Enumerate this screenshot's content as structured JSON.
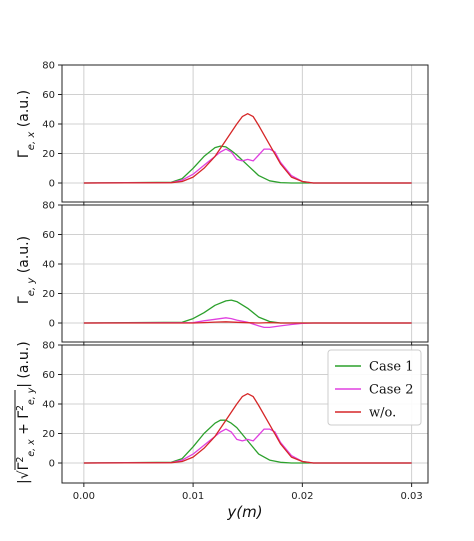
{
  "chart_data": [
    {
      "type": "line",
      "ylabel": "Γe, x (a.u.)",
      "ylim": [
        0,
        80
      ],
      "yticks": [
        0,
        20,
        40,
        60,
        80
      ],
      "xlim": [
        -0.002,
        0.0315
      ],
      "xticks": [
        0.0,
        0.01,
        0.02,
        0.03
      ],
      "grid": true,
      "series": [
        {
          "name": "Case 1",
          "color": "#2ca02c",
          "x": [
            0,
            0.008,
            0.009,
            0.01,
            0.011,
            0.012,
            0.0125,
            0.013,
            0.0135,
            0.014,
            0.015,
            0.016,
            0.017,
            0.018,
            0.019,
            0.02,
            0.021,
            0.03
          ],
          "y": [
            0,
            0.5,
            3,
            10,
            18,
            24,
            25,
            24.5,
            22,
            19,
            12,
            5,
            1.5,
            0.3,
            0,
            0,
            0,
            0
          ]
        },
        {
          "name": "Case 2",
          "color": "#e040e0",
          "x": [
            0,
            0.008,
            0.009,
            0.01,
            0.011,
            0.012,
            0.0125,
            0.013,
            0.0135,
            0.014,
            0.0145,
            0.015,
            0.0155,
            0.016,
            0.0165,
            0.017,
            0.0175,
            0.018,
            0.019,
            0.02,
            0.021,
            0.03
          ],
          "y": [
            0,
            0.3,
            2,
            6,
            12,
            18,
            21,
            23,
            21,
            16,
            15,
            16,
            15,
            19,
            23,
            23,
            21,
            14,
            5,
            1,
            0,
            0
          ]
        },
        {
          "name": "w/o.",
          "color": "#d62728",
          "x": [
            0,
            0.008,
            0.009,
            0.01,
            0.011,
            0.012,
            0.013,
            0.014,
            0.0145,
            0.015,
            0.0155,
            0.016,
            0.017,
            0.018,
            0.019,
            0.02,
            0.021,
            0.03
          ],
          "y": [
            0,
            0.2,
            1,
            4,
            10,
            18,
            29,
            40,
            45,
            47,
            45,
            39,
            26,
            13,
            4,
            1,
            0,
            0
          ]
        }
      ]
    },
    {
      "type": "line",
      "ylabel": "Γe, y (a.u.)",
      "ylim": [
        -10,
        80
      ],
      "yticks": [
        0,
        20,
        40,
        60,
        80
      ],
      "xlim": [
        -0.002,
        0.0315
      ],
      "xticks": [
        0.0,
        0.01,
        0.02,
        0.03
      ],
      "grid": true,
      "series": [
        {
          "name": "Case 1",
          "color": "#2ca02c",
          "x": [
            0,
            0.009,
            0.01,
            0.011,
            0.012,
            0.013,
            0.0135,
            0.014,
            0.015,
            0.016,
            0.017,
            0.018,
            0.03
          ],
          "y": [
            0,
            0.5,
            3,
            7,
            12,
            15,
            15.5,
            14.5,
            10,
            4,
            1,
            0,
            0
          ]
        },
        {
          "name": "Case 2",
          "color": "#e040e0",
          "x": [
            0,
            0.01,
            0.011,
            0.012,
            0.013,
            0.0135,
            0.014,
            0.015,
            0.016,
            0.0165,
            0.017,
            0.018,
            0.019,
            0.02,
            0.021,
            0.03
          ],
          "y": [
            0,
            0.3,
            1.5,
            2.5,
            3.5,
            3,
            2,
            0.5,
            -2,
            -3,
            -3,
            -2,
            -1,
            -0.3,
            0,
            0
          ]
        },
        {
          "name": "w/o.",
          "color": "#d62728",
          "x": [
            0,
            0.01,
            0.011,
            0.012,
            0.013,
            0.014,
            0.015,
            0.016,
            0.017,
            0.018,
            0.03
          ],
          "y": [
            0,
            0,
            0.3,
            0.6,
            0.8,
            0.5,
            0.2,
            0,
            0.3,
            0,
            0
          ]
        }
      ]
    },
    {
      "type": "line",
      "ylabel": "|√(Γ²e, x + Γ²e, y)| (a.u.)",
      "ylim": [
        -10,
        80
      ],
      "yticks": [
        0,
        20,
        40,
        60,
        80
      ],
      "xlim": [
        -0.002,
        0.0315
      ],
      "xticks": [
        0.0,
        0.01,
        0.02,
        0.03
      ],
      "xticklabels": [
        "0.00",
        "0.01",
        "0.02",
        "0.03"
      ],
      "xlabel": "y(m)",
      "grid": true,
      "legend": "upper right",
      "series": [
        {
          "name": "Case 1",
          "color": "#2ca02c",
          "x": [
            0,
            0.008,
            0.009,
            0.01,
            0.011,
            0.012,
            0.0125,
            0.013,
            0.0135,
            0.014,
            0.015,
            0.016,
            0.017,
            0.018,
            0.019,
            0.02,
            0.021,
            0.03
          ],
          "y": [
            0,
            0.5,
            3,
            11,
            20,
            27,
            29,
            29,
            27,
            24,
            15,
            6,
            2,
            0.5,
            0,
            0,
            0,
            0
          ]
        },
        {
          "name": "Case 2",
          "color": "#e040e0",
          "x": [
            0,
            0.008,
            0.009,
            0.01,
            0.011,
            0.012,
            0.0125,
            0.013,
            0.0135,
            0.014,
            0.0145,
            0.015,
            0.0155,
            0.016,
            0.0165,
            0.017,
            0.0175,
            0.018,
            0.019,
            0.02,
            0.021,
            0.03
          ],
          "y": [
            0,
            0.3,
            2,
            6,
            12,
            18,
            21,
            23,
            21,
            16,
            15,
            16,
            15,
            19,
            23,
            23,
            21,
            14,
            5,
            1,
            0,
            0
          ]
        },
        {
          "name": "w/o.",
          "color": "#d62728",
          "x": [
            0,
            0.008,
            0.009,
            0.01,
            0.011,
            0.012,
            0.013,
            0.014,
            0.0145,
            0.015,
            0.0155,
            0.016,
            0.017,
            0.018,
            0.019,
            0.02,
            0.021,
            0.03
          ],
          "y": [
            0,
            0.2,
            1,
            4,
            10,
            18,
            29,
            40,
            45,
            47,
            45,
            39,
            26,
            13,
            4,
            1,
            0,
            0
          ]
        }
      ]
    }
  ]
}
